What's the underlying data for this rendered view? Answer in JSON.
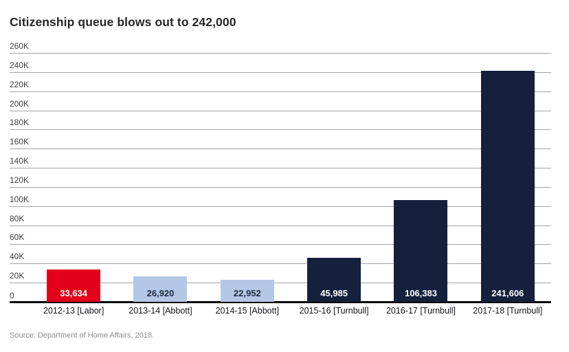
{
  "page": {
    "background": "#ffffff"
  },
  "header": {
    "title": "Citizenship queue blows out to 242,000"
  },
  "footer": {
    "source": "Source: Department of Home Affairs, 2018."
  },
  "chart_data": {
    "type": "bar",
    "title": "Citizenship queue blows out to 242,000",
    "categories": [
      "2012-13 [Labor]",
      "2013-14 [Abbott]",
      "2014-15 [Abbott]",
      "2015-16 [Turnbull]",
      "2016-17 [Turnbull]",
      "2017-18 [Turnbull]"
    ],
    "values": [
      33634,
      26920,
      22952,
      45985,
      106383,
      241606
    ],
    "value_labels": [
      "33,634",
      "26,920",
      "22,952",
      "45,985",
      "106,383",
      "241,606"
    ],
    "bar_colors": [
      "#e2001a",
      "#b4c7e7",
      "#b4c7e7",
      "#14203c",
      "#14203c",
      "#14203c"
    ],
    "value_label_colors": [
      "#ffffff",
      "#1f2a3c",
      "#1f2a3c",
      "#ffffff",
      "#ffffff",
      "#ffffff"
    ],
    "ytick_labels": [
      "260K",
      "240K",
      "220K",
      "200K",
      "180K",
      "160K",
      "140K",
      "120K",
      "100K",
      "80K",
      "60K",
      "40K",
      "20K"
    ],
    "ytick_values": [
      260000,
      240000,
      220000,
      200000,
      180000,
      160000,
      140000,
      120000,
      100000,
      80000,
      60000,
      40000,
      20000
    ],
    "zero_label": "0",
    "xlabel": "",
    "ylabel": "",
    "ylim": [
      0,
      260000
    ],
    "grid": true,
    "legend_position": "none",
    "colors": {
      "grid": "#a3a3a3",
      "axis_line": "#000000",
      "tick_label": "#3f3f3f",
      "category_label": "#15151c",
      "title": "#262626",
      "source": "#8c8c8c"
    }
  }
}
